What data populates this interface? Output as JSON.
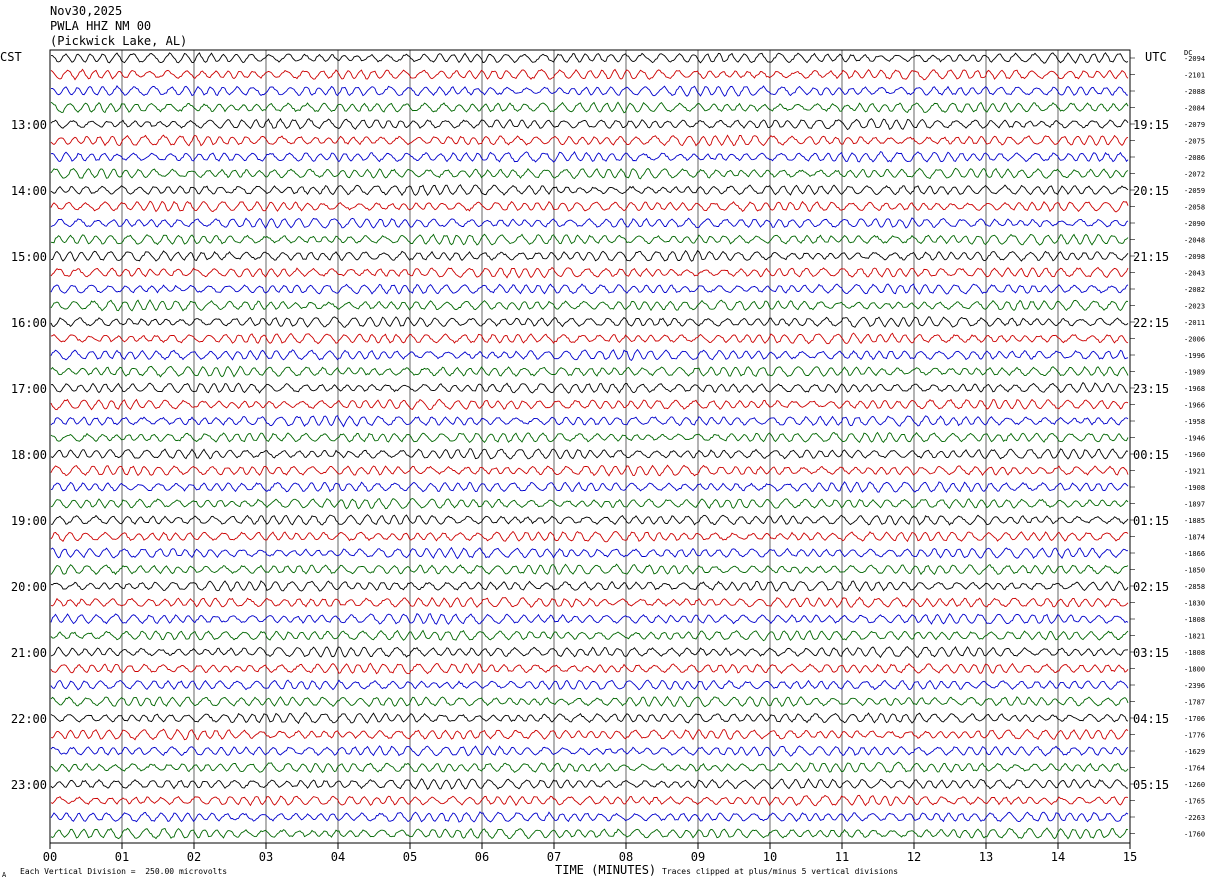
{
  "header": {
    "date": "Nov30,2025",
    "channel": "PWLA HHZ NM 00",
    "location": "(Pickwick Lake, AL)"
  },
  "left_timezone": "CST",
  "right_timezone": "UTC",
  "dc_label": "DC",
  "footer": {
    "scale_note": "Each Vertical Division =  250.00 microvolts",
    "xlabel": "TIME (MINUTES)",
    "clip_note": "Traces clipped at plus/minus 5 vertical divisions"
  },
  "chart_data": {
    "type": "line",
    "title": "PWLA HHZ NM 00",
    "xlabel": "TIME (MINUTES)",
    "x_ticks": [
      "00",
      "01",
      "02",
      "03",
      "04",
      "05",
      "06",
      "07",
      "08",
      "09",
      "10",
      "11",
      "12",
      "13",
      "14",
      "15"
    ],
    "xlim": [
      0,
      15
    ],
    "trace_colors": [
      "#000000",
      "#cc0000",
      "#0000cc",
      "#006600"
    ],
    "cst_hour_labels": [
      "13:00",
      "14:00",
      "15:00",
      "16:00",
      "17:00",
      "18:00",
      "19:00",
      "20:00",
      "21:00",
      "22:00",
      "23:00"
    ],
    "utc_hour_labels": [
      "19:15",
      "20:15",
      "21:15",
      "22:15",
      "23:15",
      "00:15",
      "01:15",
      "02:15",
      "03:15",
      "04:15",
      "05:15"
    ],
    "dc_offsets": [
      "-2094",
      "-2101",
      "-2088",
      "-2084",
      "-2079",
      "-2075",
      "-2086",
      "-2072",
      "-2059",
      "-2058",
      "-2090",
      "-2048",
      "-2098",
      "-2043",
      "-2082",
      "-2023",
      "-2011",
      "-2006",
      "-1996",
      "-1989",
      "-1968",
      "-1966",
      "-1958",
      "-1946",
      "-1960",
      "-1921",
      "-1908",
      "-1897",
      "-1885",
      "-1874",
      "-1866",
      "-1850",
      "-2858",
      "-1830",
      "-1808",
      "-1821",
      "-1808",
      "-1800",
      "-2396",
      "-1787",
      "-1706",
      "-1776",
      "-1629",
      "-1764",
      "-1260",
      "-1765",
      "-2263",
      "-1760"
    ]
  }
}
